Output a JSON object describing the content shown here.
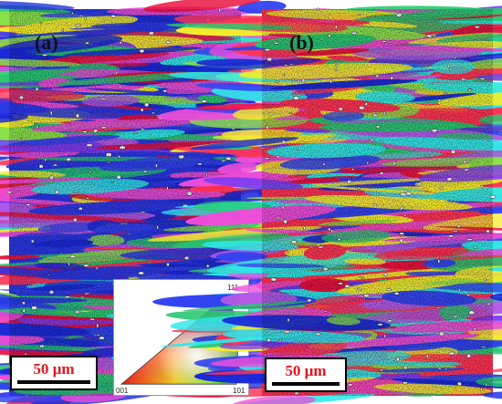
{
  "panels": [
    {
      "label": "(a)",
      "scale_bar": "50 µm"
    },
    {
      "label": "(b)",
      "scale_bar": "50 µm"
    }
  ],
  "ipf_key": {
    "corners": {
      "top": "111",
      "bottom_left": "001",
      "bottom_right": "101"
    },
    "colors": {
      "001": "#ff0000",
      "101": "#00ff00",
      "111": "#0000ff"
    }
  },
  "map_palette": [
    "#1a2ad8",
    "#3243f0",
    "#e8103a",
    "#ff3355",
    "#ee4dd8",
    "#b45ae6",
    "#7d3cf0",
    "#29c870",
    "#2ee8e8",
    "#f5ee2a",
    "#8be24a",
    "#ffffff"
  ]
}
